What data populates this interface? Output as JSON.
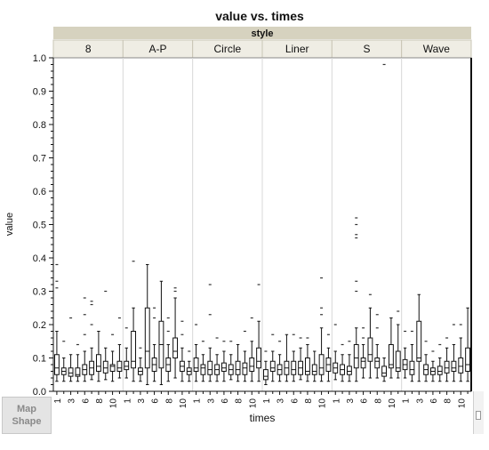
{
  "chart_data": {
    "type": "boxplot",
    "title": "value vs. times",
    "xlabel": "times",
    "ylabel": "value",
    "facet_label": "style",
    "ylim": [
      0,
      1
    ],
    "y_ticks": [
      "0.0",
      "0.1",
      "0.2",
      "0.3",
      "0.4",
      "0.5",
      "0.6",
      "0.7",
      "0.8",
      "0.9",
      "1.0"
    ],
    "x_tick_labels": [
      "1",
      "3",
      "6",
      "8",
      "10"
    ],
    "panels": [
      {
        "name": "8",
        "boxes": [
          {
            "whislo": 0.03,
            "q1": 0.05,
            "med": 0.07,
            "q3": 0.11,
            "whishi": 0.18,
            "fliers": [
              0.31,
              0.33,
              0.38
            ]
          },
          {
            "whislo": 0.03,
            "q1": 0.05,
            "med": 0.06,
            "q3": 0.07,
            "whishi": 0.1,
            "fliers": [
              0.15
            ]
          },
          {
            "whislo": 0.03,
            "q1": 0.045,
            "med": 0.055,
            "q3": 0.07,
            "whishi": 0.11,
            "fliers": [
              0.22
            ]
          },
          {
            "whislo": 0.03,
            "q1": 0.045,
            "med": 0.05,
            "q3": 0.07,
            "whishi": 0.11,
            "fliers": [
              0.14
            ]
          },
          {
            "whislo": 0.03,
            "q1": 0.05,
            "med": 0.065,
            "q3": 0.08,
            "whishi": 0.12,
            "fliers": [
              0.17,
              0.23,
              0.28
            ]
          },
          {
            "whislo": 0.035,
            "q1": 0.05,
            "med": 0.07,
            "q3": 0.09,
            "whishi": 0.13,
            "fliers": [
              0.2,
              0.26,
              0.27
            ]
          },
          {
            "whislo": 0.03,
            "q1": 0.06,
            "med": 0.075,
            "q3": 0.11,
            "whishi": 0.18,
            "fliers": []
          },
          {
            "whislo": 0.035,
            "q1": 0.055,
            "med": 0.07,
            "q3": 0.09,
            "whishi": 0.13,
            "fliers": [
              0.3
            ]
          },
          {
            "whislo": 0.03,
            "q1": 0.06,
            "med": 0.075,
            "q3": 0.08,
            "whishi": 0.12,
            "fliers": [
              0.17
            ]
          },
          {
            "whislo": 0.04,
            "q1": 0.06,
            "med": 0.07,
            "q3": 0.09,
            "whishi": 0.14,
            "fliers": [
              0.22
            ]
          }
        ]
      },
      {
        "name": "A-P",
        "boxes": [
          {
            "whislo": 0.04,
            "q1": 0.065,
            "med": 0.075,
            "q3": 0.09,
            "whishi": 0.13,
            "fliers": [
              0.19
            ]
          },
          {
            "whislo": 0.03,
            "q1": 0.07,
            "med": 0.09,
            "q3": 0.18,
            "whishi": 0.25,
            "fliers": [
              0.39
            ]
          },
          {
            "whislo": 0.03,
            "q1": 0.05,
            "med": 0.06,
            "q3": 0.07,
            "whishi": 0.1,
            "fliers": [
              0.13
            ]
          },
          {
            "whislo": 0.02,
            "q1": 0.07,
            "med": 0.12,
            "q3": 0.25,
            "whishi": 0.38,
            "fliers": []
          },
          {
            "whislo": 0.03,
            "q1": 0.06,
            "med": 0.08,
            "q3": 0.1,
            "whishi": 0.14,
            "fliers": [
              0.22,
              0.25
            ]
          },
          {
            "whislo": 0.02,
            "q1": 0.07,
            "med": 0.14,
            "q3": 0.21,
            "whishi": 0.33,
            "fliers": []
          },
          {
            "whislo": 0.03,
            "q1": 0.06,
            "med": 0.08,
            "q3": 0.1,
            "whishi": 0.14,
            "fliers": [
              0.18,
              0.22
            ]
          },
          {
            "whislo": 0.04,
            "q1": 0.1,
            "med": 0.12,
            "q3": 0.16,
            "whishi": 0.28,
            "fliers": [
              0.3,
              0.31
            ]
          },
          {
            "whislo": 0.03,
            "q1": 0.06,
            "med": 0.075,
            "q3": 0.09,
            "whishi": 0.13,
            "fliers": [
              0.17,
              0.21
            ]
          },
          {
            "whislo": 0.03,
            "q1": 0.05,
            "med": 0.06,
            "q3": 0.07,
            "whishi": 0.09,
            "fliers": [
              0.12
            ]
          }
        ]
      },
      {
        "name": "Circle",
        "boxes": [
          {
            "whislo": 0.03,
            "q1": 0.06,
            "med": 0.07,
            "q3": 0.1,
            "whishi": 0.14,
            "fliers": [
              0.2
            ]
          },
          {
            "whislo": 0.03,
            "q1": 0.05,
            "med": 0.07,
            "q3": 0.08,
            "whishi": 0.11,
            "fliers": [
              0.15
            ]
          },
          {
            "whislo": 0.03,
            "q1": 0.05,
            "med": 0.065,
            "q3": 0.09,
            "whishi": 0.13,
            "fliers": [
              0.23,
              0.32
            ]
          },
          {
            "whislo": 0.03,
            "q1": 0.05,
            "med": 0.065,
            "q3": 0.08,
            "whishi": 0.11,
            "fliers": [
              0.16
            ]
          },
          {
            "whislo": 0.03,
            "q1": 0.06,
            "med": 0.07,
            "q3": 0.085,
            "whishi": 0.12,
            "fliers": [
              0.15
            ]
          },
          {
            "whislo": 0.035,
            "q1": 0.05,
            "med": 0.065,
            "q3": 0.08,
            "whishi": 0.11,
            "fliers": [
              0.15
            ]
          },
          {
            "whislo": 0.03,
            "q1": 0.05,
            "med": 0.065,
            "q3": 0.09,
            "whishi": 0.14,
            "fliers": []
          },
          {
            "whislo": 0.03,
            "q1": 0.05,
            "med": 0.07,
            "q3": 0.085,
            "whishi": 0.12,
            "fliers": [
              0.18
            ]
          },
          {
            "whislo": 0.03,
            "q1": 0.06,
            "med": 0.075,
            "q3": 0.1,
            "whishi": 0.15,
            "fliers": [
              0.22
            ]
          },
          {
            "whislo": 0.03,
            "q1": 0.07,
            "med": 0.09,
            "q3": 0.13,
            "whishi": 0.21,
            "fliers": [
              0.32
            ]
          }
        ]
      },
      {
        "name": "Liner",
        "boxes": [
          {
            "whislo": 0.02,
            "q1": 0.035,
            "med": 0.045,
            "q3": 0.065,
            "whishi": 0.09,
            "fliers": [
              0.12
            ]
          },
          {
            "whislo": 0.03,
            "q1": 0.06,
            "med": 0.07,
            "q3": 0.09,
            "whishi": 0.12,
            "fliers": [
              0.17
            ]
          },
          {
            "whislo": 0.03,
            "q1": 0.05,
            "med": 0.065,
            "q3": 0.08,
            "whishi": 0.11,
            "fliers": [
              0.15
            ]
          },
          {
            "whislo": 0.03,
            "q1": 0.05,
            "med": 0.07,
            "q3": 0.09,
            "whishi": 0.17,
            "fliers": []
          },
          {
            "whislo": 0.03,
            "q1": 0.05,
            "med": 0.065,
            "q3": 0.09,
            "whishi": 0.12,
            "fliers": [
              0.17
            ]
          },
          {
            "whislo": 0.035,
            "q1": 0.05,
            "med": 0.07,
            "q3": 0.09,
            "whishi": 0.13,
            "fliers": [
              0.16
            ]
          },
          {
            "whislo": 0.03,
            "q1": 0.05,
            "med": 0.06,
            "q3": 0.1,
            "whishi": 0.14,
            "fliers": [
              0.16
            ]
          },
          {
            "whislo": 0.03,
            "q1": 0.05,
            "med": 0.06,
            "q3": 0.08,
            "whishi": 0.12,
            "fliers": []
          },
          {
            "whislo": 0.03,
            "q1": 0.05,
            "med": 0.07,
            "q3": 0.11,
            "whishi": 0.19,
            "fliers": [
              0.23,
              0.25,
              0.34
            ]
          },
          {
            "whislo": 0.03,
            "q1": 0.06,
            "med": 0.08,
            "q3": 0.1,
            "whishi": 0.13,
            "fliers": [
              0.17
            ]
          }
        ]
      },
      {
        "name": "S",
        "boxes": [
          {
            "whislo": 0.035,
            "q1": 0.055,
            "med": 0.07,
            "q3": 0.085,
            "whishi": 0.12,
            "fliers": [
              0.2
            ]
          },
          {
            "whislo": 0.03,
            "q1": 0.05,
            "med": 0.065,
            "q3": 0.08,
            "whishi": 0.11,
            "fliers": [
              0.14
            ]
          },
          {
            "whislo": 0.03,
            "q1": 0.05,
            "med": 0.06,
            "q3": 0.075,
            "whishi": 0.11,
            "fliers": [
              0.15
            ]
          },
          {
            "whislo": 0.03,
            "q1": 0.07,
            "med": 0.1,
            "q3": 0.14,
            "whishi": 0.19,
            "fliers": [
              0.3,
              0.33,
              0.46,
              0.47,
              0.5,
              0.52
            ]
          },
          {
            "whislo": 0.04,
            "q1": 0.07,
            "med": 0.09,
            "q3": 0.1,
            "whishi": 0.14,
            "fliers": [
              0.16,
              0.19
            ]
          },
          {
            "whislo": 0.04,
            "q1": 0.09,
            "med": 0.11,
            "q3": 0.16,
            "whishi": 0.25,
            "fliers": [
              0.29
            ]
          },
          {
            "whislo": 0.04,
            "q1": 0.07,
            "med": 0.09,
            "q3": 0.1,
            "whishi": 0.14,
            "fliers": [
              0.19,
              0.23
            ]
          },
          {
            "whislo": 0.03,
            "q1": 0.045,
            "med": 0.055,
            "q3": 0.075,
            "whishi": 0.1,
            "fliers": [
              0.98
            ]
          },
          {
            "whislo": 0.04,
            "q1": 0.07,
            "med": 0.08,
            "q3": 0.14,
            "whishi": 0.22,
            "fliers": []
          },
          {
            "whislo": 0.04,
            "q1": 0.06,
            "med": 0.07,
            "q3": 0.12,
            "whishi": 0.2,
            "fliers": [
              0.24
            ]
          }
        ]
      },
      {
        "name": "Wave",
        "boxes": [
          {
            "whislo": 0.04,
            "q1": 0.065,
            "med": 0.08,
            "q3": 0.095,
            "whishi": 0.13,
            "fliers": [
              0.18
            ]
          },
          {
            "whislo": 0.03,
            "q1": 0.05,
            "med": 0.065,
            "q3": 0.09,
            "whishi": 0.14,
            "fliers": [
              0.18
            ]
          },
          {
            "whislo": 0.03,
            "q1": 0.09,
            "med": 0.1,
            "q3": 0.21,
            "whishi": 0.29,
            "fliers": []
          },
          {
            "whislo": 0.03,
            "q1": 0.05,
            "med": 0.065,
            "q3": 0.08,
            "whishi": 0.11,
            "fliers": [
              0.15
            ]
          },
          {
            "whislo": 0.03,
            "q1": 0.05,
            "med": 0.06,
            "q3": 0.07,
            "whishi": 0.09,
            "fliers": [
              0.12
            ]
          },
          {
            "whislo": 0.03,
            "q1": 0.05,
            "med": 0.06,
            "q3": 0.075,
            "whishi": 0.1,
            "fliers": [
              0.14
            ]
          },
          {
            "whislo": 0.03,
            "q1": 0.055,
            "med": 0.07,
            "q3": 0.09,
            "whishi": 0.13,
            "fliers": [
              0.16
            ]
          },
          {
            "whislo": 0.03,
            "q1": 0.06,
            "med": 0.07,
            "q3": 0.09,
            "whishi": 0.14,
            "fliers": [
              0.2
            ]
          },
          {
            "whislo": 0.03,
            "q1": 0.055,
            "med": 0.075,
            "q3": 0.1,
            "whishi": 0.16,
            "fliers": [
              0.2
            ]
          },
          {
            "whislo": 0.03,
            "q1": 0.06,
            "med": 0.08,
            "q3": 0.13,
            "whishi": 0.25,
            "fliers": []
          }
        ]
      }
    ]
  },
  "ui": {
    "map_shape_line1": "Map",
    "map_shape_line2": "Shape"
  }
}
